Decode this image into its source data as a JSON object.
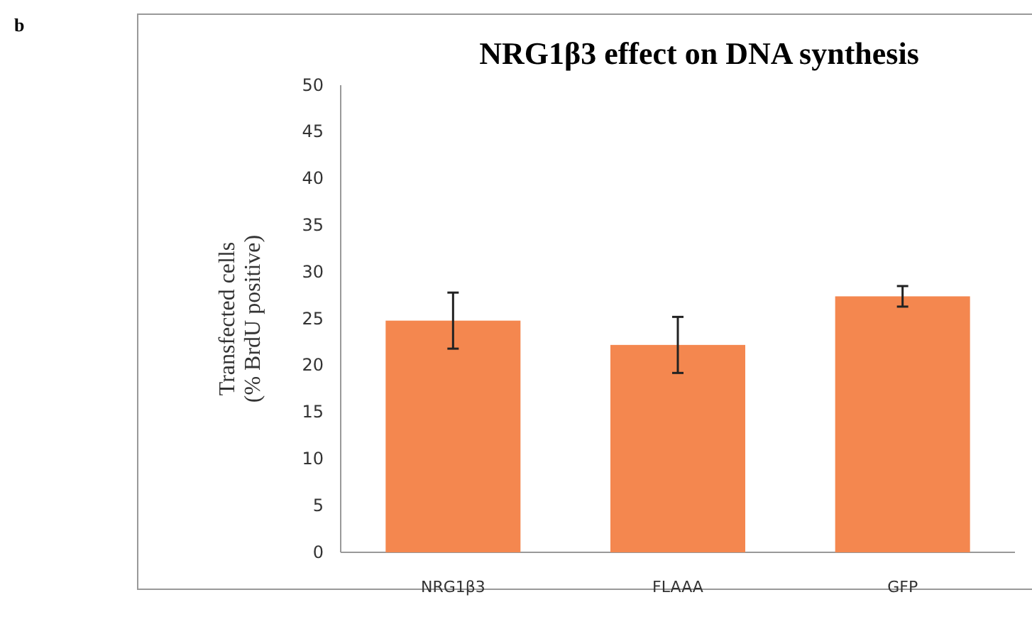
{
  "chart_data": {
    "type": "bar",
    "title": "NRG1β3 effect on DNA synthesis",
    "ylabel": "Transfected cells\n(% BrdU positive)",
    "categories": [
      "NRG1β3",
      "FLAAA",
      "GFP"
    ],
    "values": [
      24.8,
      22.2,
      27.4
    ],
    "errors": [
      3,
      3,
      1.1
    ],
    "color": "#f4874f",
    "ylim": [
      0,
      50
    ],
    "yticks": [
      0,
      5,
      10,
      15,
      20,
      25,
      30,
      35,
      40,
      45,
      50
    ],
    "grid": false,
    "annotations": [
      "b"
    ]
  }
}
